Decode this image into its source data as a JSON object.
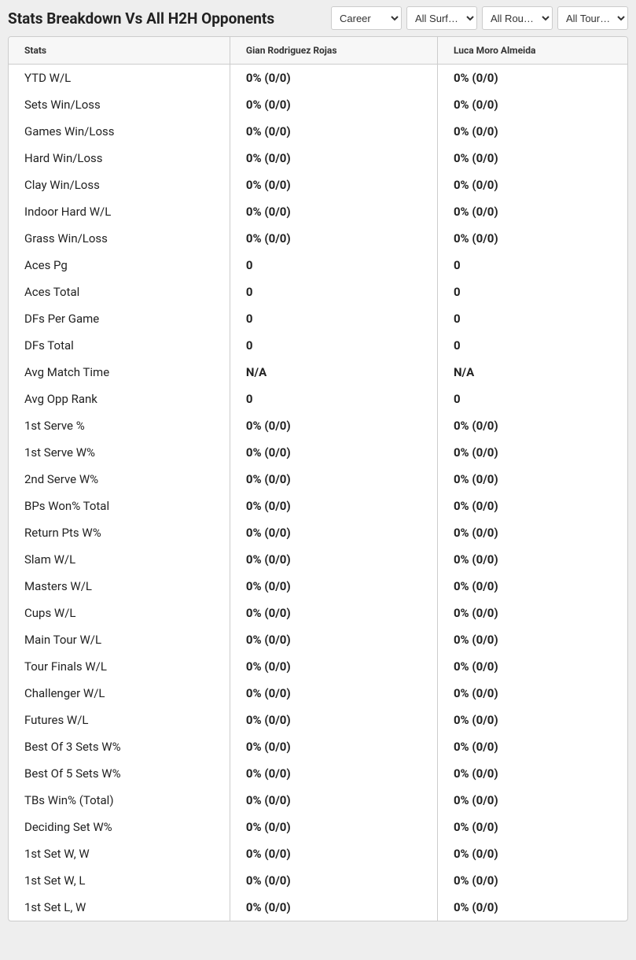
{
  "header": {
    "title": "Stats Breakdown Vs All H2H Opponents",
    "filters": [
      {
        "selected": "Career",
        "options": [
          "Career"
        ]
      },
      {
        "selected": "All Surf…",
        "options": [
          "All Surf…"
        ]
      },
      {
        "selected": "All Rou…",
        "options": [
          "All Rou…"
        ]
      },
      {
        "selected": "All Tour…",
        "options": [
          "All Tour…"
        ]
      }
    ]
  },
  "table": {
    "columns": [
      "Stats",
      "Gian Rodriguez Rojas",
      "Luca Moro Almeida"
    ],
    "rows": [
      [
        "YTD W/L",
        "0% (0/0)",
        "0% (0/0)"
      ],
      [
        "Sets Win/Loss",
        "0% (0/0)",
        "0% (0/0)"
      ],
      [
        "Games Win/Loss",
        "0% (0/0)",
        "0% (0/0)"
      ],
      [
        "Hard Win/Loss",
        "0% (0/0)",
        "0% (0/0)"
      ],
      [
        "Clay Win/Loss",
        "0% (0/0)",
        "0% (0/0)"
      ],
      [
        "Indoor Hard W/L",
        "0% (0/0)",
        "0% (0/0)"
      ],
      [
        "Grass Win/Loss",
        "0% (0/0)",
        "0% (0/0)"
      ],
      [
        "Aces Pg",
        "0",
        "0"
      ],
      [
        "Aces Total",
        "0",
        "0"
      ],
      [
        "DFs Per Game",
        "0",
        "0"
      ],
      [
        "DFs Total",
        "0",
        "0"
      ],
      [
        "Avg Match Time",
        "N/A",
        "N/A"
      ],
      [
        "Avg Opp Rank",
        "0",
        "0"
      ],
      [
        "1st Serve %",
        "0% (0/0)",
        "0% (0/0)"
      ],
      [
        "1st Serve W%",
        "0% (0/0)",
        "0% (0/0)"
      ],
      [
        "2nd Serve W%",
        "0% (0/0)",
        "0% (0/0)"
      ],
      [
        "BPs Won% Total",
        "0% (0/0)",
        "0% (0/0)"
      ],
      [
        "Return Pts W%",
        "0% (0/0)",
        "0% (0/0)"
      ],
      [
        "Slam W/L",
        "0% (0/0)",
        "0% (0/0)"
      ],
      [
        "Masters W/L",
        "0% (0/0)",
        "0% (0/0)"
      ],
      [
        "Cups W/L",
        "0% (0/0)",
        "0% (0/0)"
      ],
      [
        "Main Tour W/L",
        "0% (0/0)",
        "0% (0/0)"
      ],
      [
        "Tour Finals W/L",
        "0% (0/0)",
        "0% (0/0)"
      ],
      [
        "Challenger W/L",
        "0% (0/0)",
        "0% (0/0)"
      ],
      [
        "Futures W/L",
        "0% (0/0)",
        "0% (0/0)"
      ],
      [
        "Best Of 3 Sets W%",
        "0% (0/0)",
        "0% (0/0)"
      ],
      [
        "Best Of 5 Sets W%",
        "0% (0/0)",
        "0% (0/0)"
      ],
      [
        "TBs Win% (Total)",
        "0% (0/0)",
        "0% (0/0)"
      ],
      [
        "Deciding Set W%",
        "0% (0/0)",
        "0% (0/0)"
      ],
      [
        "1st Set W, W",
        "0% (0/0)",
        "0% (0/0)"
      ],
      [
        "1st Set W, L",
        "0% (0/0)",
        "0% (0/0)"
      ],
      [
        "1st Set L, W",
        "0% (0/0)",
        "0% (0/0)"
      ]
    ]
  },
  "colors": {
    "page_bg": "#eeeeee",
    "table_bg": "#ffffff",
    "header_bg": "#f7f7f7",
    "border": "#cccccc",
    "text": "#222222"
  }
}
